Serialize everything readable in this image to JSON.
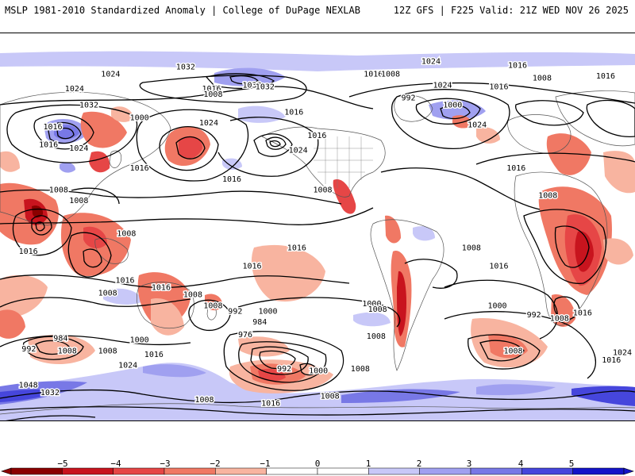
{
  "header": {
    "left": "MSLP 1981-2010 Standardized Anomaly | College of DuPage NEXLAB",
    "right": "12Z GFS | F225 Valid: 21Z WED NOV 26 2025"
  },
  "colors": {
    "neg5": "#8b0000",
    "neg4": "#c8141e",
    "neg3": "#e64646",
    "neg2": "#f07864",
    "neg1": "#f8b4a0",
    "zero": "#ffffff",
    "pos1": "#c8c8f8",
    "pos2": "#a0a0f0",
    "pos3": "#7878e6",
    "pos4": "#4646dc",
    "pos5": "#1414c8",
    "contour": "#000000"
  },
  "colorbar": {
    "ticks": [
      "−5",
      "−4",
      "−3",
      "−2",
      "−1",
      "0",
      "1",
      "2",
      "3",
      "4",
      "5"
    ]
  },
  "contour_labels": [
    {
      "text": "1024",
      "lon": -170,
      "lat": 66
    },
    {
      "text": "1032",
      "lon": -118,
      "lat": 70
    },
    {
      "text": "1016",
      "lon": -100,
      "lat": 58
    },
    {
      "text": "1008",
      "lon": -99,
      "lat": 55
    },
    {
      "text": "1032",
      "lon": -72,
      "lat": 60
    },
    {
      "text": "1032",
      "lon": -63,
      "lat": 59
    },
    {
      "text": "1016",
      "lon": -43,
      "lat": 45
    },
    {
      "text": "1016",
      "lon": -27,
      "lat": 32
    },
    {
      "text": "1024",
      "lon": -40,
      "lat": 24
    },
    {
      "text": "1016",
      "lon": -86,
      "lat": 8
    },
    {
      "text": "1008",
      "lon": -23,
      "lat": 2
    },
    {
      "text": "1024",
      "lon": -102,
      "lat": 39
    },
    {
      "text": "1000",
      "lon": -150,
      "lat": 42
    },
    {
      "text": "1016",
      "lon": -150,
      "lat": 14
    },
    {
      "text": "1024",
      "lon": 52,
      "lat": 73
    },
    {
      "text": "1016",
      "lon": 12,
      "lat": 66
    },
    {
      "text": "1008",
      "lon": 24,
      "lat": 66
    },
    {
      "text": "1024",
      "lon": 60,
      "lat": 60
    },
    {
      "text": "992",
      "lon": 38,
      "lat": 53
    },
    {
      "text": "1000",
      "lon": 67,
      "lat": 49
    },
    {
      "text": "1016",
      "lon": 112,
      "lat": 71
    },
    {
      "text": "1008",
      "lon": 129,
      "lat": 64
    },
    {
      "text": "1016",
      "lon": 99,
      "lat": 59
    },
    {
      "text": "1016",
      "lon": 173,
      "lat": 65
    },
    {
      "text": "1024",
      "lon": 84,
      "lat": 38
    },
    {
      "text": "1016",
      "lon": 111,
      "lat": 14
    },
    {
      "text": "1008",
      "lon": 133,
      "lat": -1
    },
    {
      "text": "1008",
      "lon": 80,
      "lat": -30
    },
    {
      "text": "1016",
      "lon": 99,
      "lat": -40
    },
    {
      "text": "1000",
      "lon": 98,
      "lat": -62
    },
    {
      "text": "992",
      "lon": 125,
      "lat": -67
    },
    {
      "text": "1008",
      "lon": 141,
      "lat": -69
    },
    {
      "text": "1016",
      "lon": 157,
      "lat": -66
    },
    {
      "text": "1008",
      "lon": 109,
      "lat": -87
    },
    {
      "text": "1016",
      "lon": 177,
      "lat": -92
    },
    {
      "text": "1024",
      "lon": 192,
      "lat": -88
    },
    {
      "text": "1024",
      "lon": -195,
      "lat": 58
    },
    {
      "text": "1032",
      "lon": -185,
      "lat": 49
    },
    {
      "text": "1016",
      "lon": -210,
      "lat": 37
    },
    {
      "text": "1016",
      "lon": -213,
      "lat": 27
    },
    {
      "text": "1024",
      "lon": -192,
      "lat": 25
    },
    {
      "text": "1008",
      "lon": -206,
      "lat": 2
    },
    {
      "text": "1008",
      "lon": -192,
      "lat": -4
    },
    {
      "text": "1008",
      "lon": -159,
      "lat": -22
    },
    {
      "text": "1016",
      "lon": -227,
      "lat": -32
    },
    {
      "text": "1016",
      "lon": -160,
      "lat": -48
    },
    {
      "text": "1008",
      "lon": -172,
      "lat": -55
    },
    {
      "text": "1008",
      "lon": -113,
      "lat": -56
    },
    {
      "text": "1016",
      "lon": -135,
      "lat": -52
    },
    {
      "text": "1016",
      "lon": -41,
      "lat": -30
    },
    {
      "text": "1008",
      "lon": -99,
      "lat": -62
    },
    {
      "text": "1016",
      "lon": -72,
      "lat": -40
    },
    {
      "text": "992",
      "lon": -82,
      "lat": -65
    },
    {
      "text": "984",
      "lon": -65,
      "lat": -71
    },
    {
      "text": "976",
      "lon": -75,
      "lat": -78
    },
    {
      "text": "1000",
      "lon": -61,
      "lat": -65
    },
    {
      "text": "1000",
      "lon": -150,
      "lat": -81
    },
    {
      "text": "984",
      "lon": -203,
      "lat": -80
    },
    {
      "text": "992",
      "lon": -225,
      "lat": -86
    },
    {
      "text": "1008",
      "lon": -200,
      "lat": -87
    },
    {
      "text": "1016",
      "lon": -140,
      "lat": -89
    },
    {
      "text": "1024",
      "lon": -158,
      "lat": -95
    },
    {
      "text": "992",
      "lon": -48,
      "lat": -97
    },
    {
      "text": "1000",
      "lon": -26,
      "lat": -98
    },
    {
      "text": "1008",
      "lon": 3,
      "lat": -97
    },
    {
      "text": "1008",
      "lon": -18,
      "lat": -112
    },
    {
      "text": "1008",
      "lon": -105,
      "lat": -114
    },
    {
      "text": "1016",
      "lon": -59,
      "lat": -116
    },
    {
      "text": "1000",
      "lon": 11,
      "lat": -61
    },
    {
      "text": "1008",
      "lon": 15,
      "lat": -64
    },
    {
      "text": "1008",
      "lon": 14,
      "lat": -79
    },
    {
      "text": "1048",
      "lon": -227,
      "lat": -106
    },
    {
      "text": "1032",
      "lon": -212,
      "lat": -110
    },
    {
      "text": "1008",
      "lon": -172,
      "lat": -87
    }
  ]
}
